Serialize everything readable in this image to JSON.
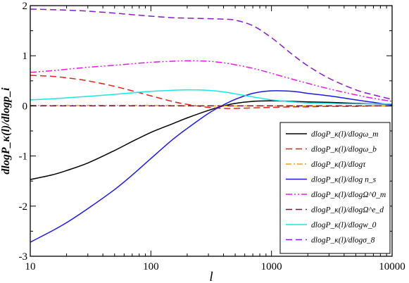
{
  "chart_data": {
    "type": "line",
    "xlabel": "l",
    "ylabel": "dlogP_κ(l)/dlogp_i",
    "xscale": "log",
    "xlim": [
      10,
      10000
    ],
    "ylim": [
      -3,
      2
    ],
    "xticks": [
      {
        "value": 10,
        "label": "10"
      },
      {
        "value": 100,
        "label": "100"
      },
      {
        "value": 1000,
        "label": "1000"
      },
      {
        "value": 10000,
        "label": "10000"
      }
    ],
    "yticks": [
      {
        "value": -3,
        "label": "-3"
      },
      {
        "value": -2,
        "label": "-2"
      },
      {
        "value": -1,
        "label": "-1"
      },
      {
        "value": 0,
        "label": "0"
      },
      {
        "value": 1,
        "label": "1"
      },
      {
        "value": 2,
        "label": "2"
      }
    ],
    "grid": false,
    "legend_position": "bottom-right",
    "series": [
      {
        "name": "dlogP_κ(l)/dlogω_m",
        "color": "#000000",
        "dash": "solid",
        "x": [
          10,
          15,
          20,
          30,
          50,
          70,
          100,
          150,
          200,
          300,
          400,
          500,
          700,
          1000,
          1500,
          2000,
          3000,
          5000,
          7000,
          10000
        ],
        "y": [
          -1.47,
          -1.38,
          -1.29,
          -1.14,
          -0.89,
          -0.71,
          -0.53,
          -0.36,
          -0.24,
          -0.09,
          0.0,
          0.05,
          0.09,
          0.1,
          0.09,
          0.08,
          0.07,
          0.05,
          0.04,
          0.03
        ]
      },
      {
        "name": "dlogP_κ(l)/dlogω_b",
        "color": "#e8211a",
        "dash": "longdash",
        "x": [
          10,
          15,
          20,
          30,
          50,
          70,
          100,
          150,
          200,
          300,
          400,
          500,
          700,
          1000,
          1500,
          2000,
          3000,
          5000,
          7000,
          10000
        ],
        "y": [
          0.61,
          0.59,
          0.56,
          0.5,
          0.39,
          0.3,
          0.2,
          0.09,
          0.03,
          -0.03,
          -0.05,
          -0.05,
          -0.04,
          -0.03,
          -0.02,
          -0.02,
          -0.01,
          -0.01,
          0.0,
          0.0
        ]
      },
      {
        "name": "dlogP_κ(l)/dlogτ",
        "color": "#e6a21a",
        "dash": "dashdot",
        "x": [
          10,
          30,
          100,
          300,
          1000,
          3000,
          10000
        ],
        "y": [
          0.01,
          0.01,
          0.01,
          0.0,
          0.0,
          0.0,
          0.0
        ]
      },
      {
        "name": "dlogP_κ(l)/dlog n_s",
        "color": "#1a1ae6",
        "dash": "solid",
        "x": [
          10,
          15,
          20,
          30,
          50,
          70,
          100,
          150,
          200,
          300,
          400,
          500,
          700,
          1000,
          1500,
          2000,
          3000,
          5000,
          7000,
          10000
        ],
        "y": [
          -2.72,
          -2.5,
          -2.33,
          -2.05,
          -1.67,
          -1.38,
          -1.05,
          -0.68,
          -0.45,
          -0.15,
          0.02,
          0.13,
          0.25,
          0.3,
          0.29,
          0.25,
          0.2,
          0.12,
          0.07,
          0.02
        ]
      },
      {
        "name": "dlogP_κ(l)/dlogΩ^0_m",
        "color": "#e619e6",
        "dash": "dashdotdot",
        "x": [
          10,
          15,
          20,
          30,
          50,
          70,
          100,
          150,
          200,
          300,
          400,
          500,
          700,
          1000,
          1500,
          2000,
          3000,
          5000,
          7000,
          10000
        ],
        "y": [
          0.67,
          0.7,
          0.73,
          0.77,
          0.81,
          0.84,
          0.87,
          0.89,
          0.9,
          0.89,
          0.86,
          0.82,
          0.75,
          0.65,
          0.53,
          0.45,
          0.34,
          0.22,
          0.15,
          0.09
        ]
      },
      {
        "name": "dlogP_κ(l)/dlogΩ^e_d",
        "color": "#6e1a3a",
        "dash": "longdash",
        "x": [
          10,
          30,
          100,
          300,
          1000,
          3000,
          10000
        ],
        "y": [
          0.0,
          0.0,
          0.0,
          0.0,
          0.0,
          0.0,
          0.0
        ]
      },
      {
        "name": "dlogP_κ(l)/dlogw_0",
        "color": "#19e6e6",
        "dash": "solid",
        "x": [
          10,
          15,
          20,
          30,
          50,
          70,
          100,
          150,
          200,
          300,
          400,
          500,
          700,
          1000,
          1500,
          2000,
          3000,
          5000,
          7000,
          10000
        ],
        "y": [
          0.12,
          0.14,
          0.16,
          0.19,
          0.23,
          0.26,
          0.29,
          0.31,
          0.32,
          0.31,
          0.28,
          0.24,
          0.18,
          0.12,
          0.08,
          0.06,
          0.05,
          0.04,
          0.04,
          0.04
        ]
      },
      {
        "name": "dlogP_κ(l)/dlogσ_8",
        "color": "#8c1ac8",
        "dash": "longdash",
        "x": [
          10,
          15,
          20,
          30,
          50,
          70,
          100,
          150,
          200,
          300,
          400,
          500,
          700,
          1000,
          1500,
          2000,
          3000,
          5000,
          7000,
          10000
        ],
        "y": [
          1.93,
          1.92,
          1.91,
          1.89,
          1.85,
          1.82,
          1.79,
          1.76,
          1.75,
          1.74,
          1.73,
          1.71,
          1.6,
          1.36,
          1.02,
          0.8,
          0.55,
          0.32,
          0.22,
          0.13
        ]
      }
    ]
  }
}
